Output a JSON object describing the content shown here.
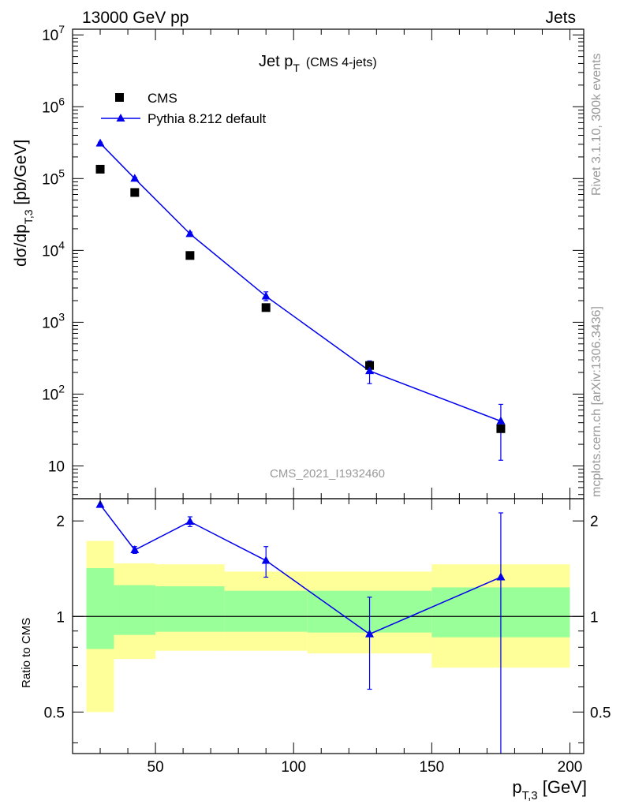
{
  "header": {
    "left": "13000 GeV pp",
    "right": "Jets"
  },
  "side": {
    "rivet": "Rivet 3.1.10,  300k events",
    "mcplots": "mcplots.cern.ch [arXiv:1306.3436]"
  },
  "colors": {
    "data": "#000000",
    "mc": "#0000ee",
    "band_inner": "#99ff99",
    "band_outer": "#ffff99"
  },
  "chart_data": [
    {
      "type": "scatter",
      "title": {
        "main": "Jet p",
        "sub": "T",
        "suffix": "(CMS 4-jets)"
      },
      "ylabel": {
        "pre": "dσ/dp",
        "sub": "T,3",
        "post": " [pb/GeV]"
      },
      "yscale": "log",
      "ylim": [
        3.5,
        12000000
      ],
      "xlim": [
        20,
        205
      ],
      "yticks": [
        {
          "v": 10,
          "base": "10",
          "exp": ""
        },
        {
          "v": 100,
          "base": "10",
          "exp": "2"
        },
        {
          "v": 1000,
          "base": "10",
          "exp": "3"
        },
        {
          "v": 10000,
          "base": "10",
          "exp": "4"
        },
        {
          "v": 100000,
          "base": "10",
          "exp": "5"
        },
        {
          "v": 1000000,
          "base": "10",
          "exp": "6"
        },
        {
          "v": 10000000,
          "base": "10",
          "exp": "7"
        }
      ],
      "legend": {
        "position": "top-left",
        "entries": [
          "CMS",
          "Pythia 8.212 default"
        ]
      },
      "watermark": "CMS_2021_I1932460",
      "series": [
        {
          "name": "CMS",
          "marker": "square",
          "x": [
            30,
            42.5,
            62.5,
            90,
            127.5,
            175
          ],
          "y": [
            135000,
            64000,
            8500,
            1600,
            250,
            33
          ]
        },
        {
          "name": "Pythia 8.212 default",
          "marker": "triangle",
          "x": [
            30,
            42.5,
            62.5,
            90,
            127.5,
            175
          ],
          "y": [
            310000,
            100000,
            17000,
            2300,
            210,
            42
          ],
          "yerr_lo": [
            300000,
            96000,
            16000,
            2000,
            140,
            12
          ],
          "yerr_hi": [
            320000,
            104000,
            18000,
            2650,
            290,
            72
          ]
        }
      ]
    },
    {
      "type": "line",
      "ylabel": "Ratio to CMS",
      "xlabel": {
        "pre": "p",
        "sub": "T,3",
        "post": " [GeV]"
      },
      "yscale": "log",
      "ylim": [
        0.37,
        2.35
      ],
      "xlim": [
        20,
        205
      ],
      "xticks": [
        50,
        100,
        150,
        200
      ],
      "yticks": [
        0.5,
        1,
        2
      ],
      "ytick_labels": [
        "0.5",
        "1",
        "2"
      ],
      "bands": {
        "bin_edges": [
          25,
          35,
          50,
          75,
          105,
          150,
          200
        ],
        "outer_lo": [
          0.5,
          0.735,
          0.78,
          0.78,
          0.765,
          0.69
        ],
        "outer_hi": [
          1.73,
          1.47,
          1.46,
          1.385,
          1.385,
          1.46
        ],
        "inner_lo": [
          0.79,
          0.875,
          0.895,
          0.895,
          0.89,
          0.86
        ],
        "inner_hi": [
          1.42,
          1.255,
          1.245,
          1.205,
          1.205,
          1.235
        ]
      },
      "series": [
        {
          "name": "Pythia 8.212 default",
          "x": [
            30,
            42.5,
            62.5,
            90,
            127.5,
            175
          ],
          "y": [
            2.25,
            1.62,
            1.99,
            1.5,
            0.88,
            1.33
          ],
          "yerr_lo": [
            2.25,
            1.58,
            1.92,
            1.33,
            0.59,
            0.36
          ],
          "yerr_hi": [
            2.25,
            1.66,
            2.06,
            1.66,
            1.15,
            2.12
          ]
        }
      ]
    }
  ]
}
